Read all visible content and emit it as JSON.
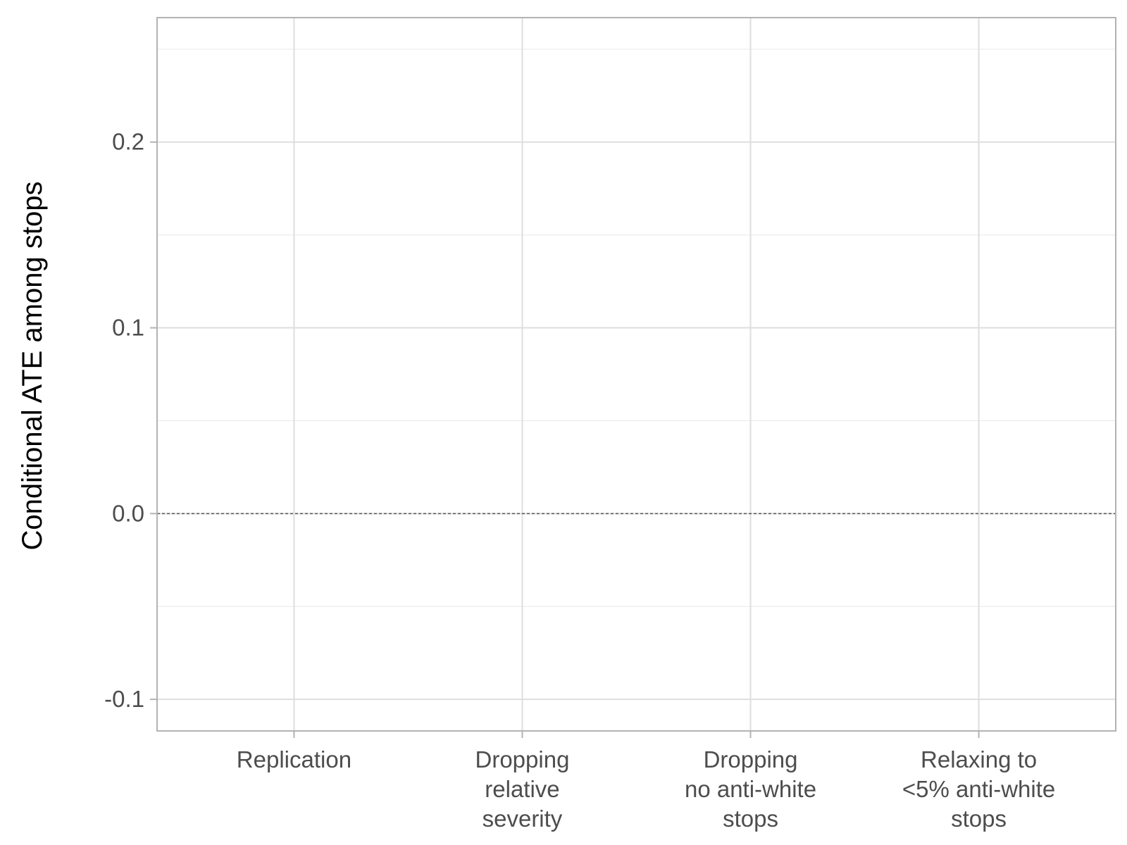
{
  "chart_data": {
    "type": "scatter",
    "title": "",
    "xlabel": "",
    "ylabel": "Conditional ATE among stops",
    "categories": [
      [
        "Replication"
      ],
      [
        "Dropping",
        "relative",
        "severity"
      ],
      [
        "Dropping",
        "no anti-white",
        "stops"
      ],
      [
        "Relaxing to",
        "<5% anti-white",
        "stops"
      ]
    ],
    "y_ticks": [
      {
        "value": -0.1,
        "label": "-0.1"
      },
      {
        "value": 0.0,
        "label": "0.0"
      },
      {
        "value": 0.1,
        "label": "0.1"
      },
      {
        "value": 0.2,
        "label": "0.2"
      }
    ],
    "ylim": [
      -0.117,
      0.267
    ],
    "reference_line": {
      "y": 0.0,
      "style": "dashed"
    },
    "series": [],
    "grid": true,
    "legend": "none"
  }
}
